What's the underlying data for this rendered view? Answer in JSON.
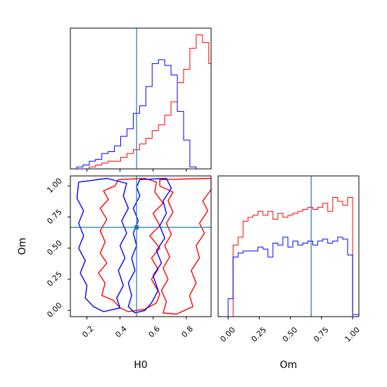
{
  "chart_data": {
    "type": "corner",
    "colors": {
      "red": "#ff0000",
      "blue": "#0000ff",
      "truth": "#1f77b4",
      "frame": "#000000"
    },
    "truth": {
      "H0": 0.5,
      "Om": 0.667
    },
    "panels": {
      "h0_hist": {
        "xlim": [
          0.1,
          0.95
        ],
        "bin_width": 0.038,
        "x0": 0.1,
        "red": [
          0,
          0,
          0,
          1,
          2,
          3,
          4,
          4,
          6,
          8,
          10,
          13,
          16,
          20,
          23,
          28,
          35,
          45,
          52,
          63,
          70,
          66,
          55,
          41,
          17,
          9
        ],
        "blue": [
          0,
          1,
          2,
          4,
          5,
          8,
          9,
          12,
          17,
          21,
          29,
          33,
          43,
          55,
          57,
          54,
          49,
          30,
          15,
          1,
          0,
          0,
          0,
          0,
          0,
          0
        ]
      },
      "om_hist": {
        "xlim": [
          -0.08,
          1.05
        ],
        "xticks": [
          "0.00",
          "0.25",
          "0.50",
          "0.75",
          "1.00"
        ],
        "xtick_values": [
          0.0,
          0.25,
          0.5,
          0.75,
          1.0
        ],
        "xlabel": "Om",
        "bin_width": 0.04,
        "x0": -0.08,
        "red": [
          0,
          0,
          0,
          36,
          40,
          48,
          50,
          51,
          53,
          51,
          53,
          49,
          52,
          50,
          51,
          52,
          53,
          54,
          55,
          54,
          55,
          57,
          53,
          60,
          58,
          56,
          60,
          0,
          0
        ],
        "blue": [
          0,
          0,
          9,
          30,
          32,
          33,
          33,
          33,
          35,
          34,
          30,
          37,
          36,
          40,
          35,
          38,
          36,
          37,
          38,
          36,
          38,
          39,
          37,
          38,
          40,
          39,
          31,
          1,
          1
        ]
      },
      "h0_om_contour": {
        "xlim": [
          0.1,
          0.95
        ],
        "ylim": [
          -0.05,
          1.08
        ],
        "xticks": [
          "0.2",
          "0.4",
          "0.6",
          "0.8"
        ],
        "xtick_values": [
          0.2,
          0.4,
          0.6,
          0.8
        ],
        "yticks": [
          "0.00",
          "0.25",
          "0.50",
          "0.75",
          "1.00"
        ],
        "ytick_values": [
          0.0,
          0.25,
          0.5,
          0.75,
          1.0
        ],
        "xlabel": "H0",
        "ylabel": "Om",
        "contours": [
          {
            "color": "red",
            "points": [
              [
                0.39,
                1.05
              ],
              [
                0.55,
                1.06
              ],
              [
                0.62,
                1.03
              ],
              [
                0.61,
                0.95
              ],
              [
                0.66,
                0.86
              ],
              [
                0.6,
                0.78
              ],
              [
                0.64,
                0.68
              ],
              [
                0.58,
                0.6
              ],
              [
                0.64,
                0.5
              ],
              [
                0.59,
                0.42
              ],
              [
                0.63,
                0.33
              ],
              [
                0.59,
                0.25
              ],
              [
                0.64,
                0.13
              ],
              [
                0.62,
                0.06
              ],
              [
                0.55,
                0.01
              ],
              [
                0.45,
                -0.01
              ],
              [
                0.4,
                0.02
              ],
              [
                0.36,
                0.08
              ],
              [
                0.29,
                0.12
              ],
              [
                0.31,
                0.22
              ],
              [
                0.27,
                0.3
              ],
              [
                0.32,
                0.38
              ],
              [
                0.28,
                0.46
              ],
              [
                0.31,
                0.55
              ],
              [
                0.28,
                0.64
              ],
              [
                0.32,
                0.73
              ],
              [
                0.28,
                0.82
              ],
              [
                0.33,
                0.89
              ],
              [
                0.3,
                0.96
              ],
              [
                0.37,
                1.0
              ],
              [
                0.39,
                1.05
              ]
            ]
          },
          {
            "color": "red",
            "points": [
              [
                0.64,
                1.05
              ],
              [
                0.95,
                1.06
              ],
              [
                0.95,
                0.97
              ],
              [
                0.9,
                0.88
              ],
              [
                0.93,
                0.8
              ],
              [
                0.88,
                0.7
              ],
              [
                0.91,
                0.62
              ],
              [
                0.86,
                0.52
              ],
              [
                0.88,
                0.42
              ],
              [
                0.83,
                0.32
              ],
              [
                0.86,
                0.22
              ],
              [
                0.82,
                0.12
              ],
              [
                0.84,
                0.03
              ],
              [
                0.74,
                -0.03
              ],
              [
                0.66,
                -0.02
              ],
              [
                0.68,
                0.07
              ],
              [
                0.65,
                0.16
              ],
              [
                0.69,
                0.25
              ],
              [
                0.66,
                0.34
              ],
              [
                0.7,
                0.43
              ],
              [
                0.67,
                0.52
              ],
              [
                0.71,
                0.61
              ],
              [
                0.68,
                0.7
              ],
              [
                0.72,
                0.79
              ],
              [
                0.69,
                0.88
              ],
              [
                0.72,
                0.95
              ],
              [
                0.64,
                1.0
              ],
              [
                0.64,
                1.05
              ]
            ]
          },
          {
            "color": "blue",
            "points": [
              [
                0.15,
                1.03
              ],
              [
                0.32,
                1.06
              ],
              [
                0.44,
                1.02
              ],
              [
                0.42,
                0.92
              ],
              [
                0.45,
                0.82
              ],
              [
                0.41,
                0.72
              ],
              [
                0.44,
                0.62
              ],
              [
                0.4,
                0.52
              ],
              [
                0.43,
                0.42
              ],
              [
                0.39,
                0.32
              ],
              [
                0.42,
                0.2
              ],
              [
                0.38,
                0.1
              ],
              [
                0.4,
                0.02
              ],
              [
                0.3,
                -0.01
              ],
              [
                0.24,
                0.03
              ],
              [
                0.19,
                0.1
              ],
              [
                0.2,
                0.2
              ],
              [
                0.16,
                0.3
              ],
              [
                0.19,
                0.4
              ],
              [
                0.15,
                0.5
              ],
              [
                0.18,
                0.6
              ],
              [
                0.15,
                0.7
              ],
              [
                0.18,
                0.8
              ],
              [
                0.14,
                0.9
              ],
              [
                0.15,
                1.03
              ]
            ]
          },
          {
            "color": "blue",
            "points": [
              [
                0.52,
                1.05
              ],
              [
                0.68,
                1.06
              ],
              [
                0.71,
                0.98
              ],
              [
                0.66,
                0.88
              ],
              [
                0.68,
                0.78
              ],
              [
                0.64,
                0.68
              ],
              [
                0.67,
                0.58
              ],
              [
                0.62,
                0.48
              ],
              [
                0.65,
                0.38
              ],
              [
                0.6,
                0.28
              ],
              [
                0.63,
                0.16
              ],
              [
                0.59,
                0.06
              ],
              [
                0.55,
                0.0
              ],
              [
                0.49,
                -0.02
              ],
              [
                0.45,
                0.03
              ],
              [
                0.47,
                0.12
              ],
              [
                0.45,
                0.22
              ],
              [
                0.49,
                0.32
              ],
              [
                0.47,
                0.42
              ],
              [
                0.5,
                0.52
              ],
              [
                0.48,
                0.62
              ],
              [
                0.51,
                0.72
              ],
              [
                0.48,
                0.82
              ],
              [
                0.52,
                0.92
              ],
              [
                0.5,
                0.99
              ],
              [
                0.52,
                1.05
              ]
            ]
          }
        ]
      }
    }
  }
}
